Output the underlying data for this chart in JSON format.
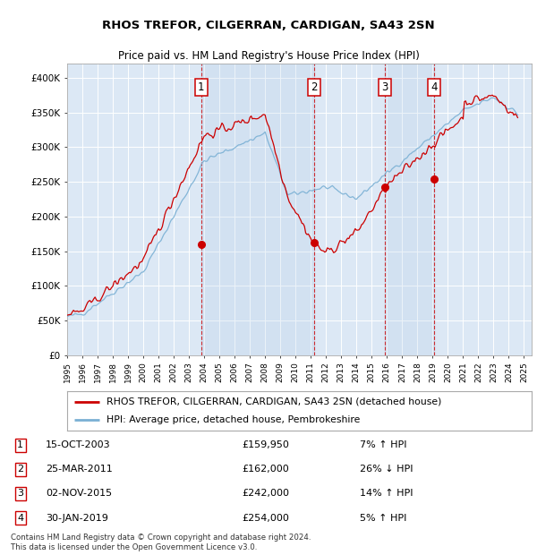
{
  "title": "RHOS TREFOR, CILGERRAN, CARDIGAN, SA43 2SN",
  "subtitle": "Price paid vs. HM Land Registry's House Price Index (HPI)",
  "background_color": "#ffffff",
  "chart_bg_color": "#dce8f5",
  "grid_color": "#ffffff",
  "ylim": [
    0,
    420000
  ],
  "yticks": [
    0,
    50000,
    100000,
    150000,
    200000,
    250000,
    300000,
    350000,
    400000
  ],
  "ytick_labels": [
    "£0",
    "£50K",
    "£100K",
    "£150K",
    "£200K",
    "£250K",
    "£300K",
    "£350K",
    "£400K"
  ],
  "legend_entries": [
    "RHOS TREFOR, CILGERRAN, CARDIGAN, SA43 2SN (detached house)",
    "HPI: Average price, detached house, Pembrokeshire"
  ],
  "legend_colors": [
    "#cc0000",
    "#7ab0d4"
  ],
  "transactions": [
    {
      "num": 1,
      "date": "15-OCT-2003",
      "price": "£159,950",
      "pct": "7%",
      "dir": "↑",
      "rel": "HPI"
    },
    {
      "num": 2,
      "date": "25-MAR-2011",
      "price": "£162,000",
      "pct": "26%",
      "dir": "↓",
      "rel": "HPI"
    },
    {
      "num": 3,
      "date": "02-NOV-2015",
      "price": "£242,000",
      "pct": "14%",
      "dir": "↑",
      "rel": "HPI"
    },
    {
      "num": 4,
      "date": "30-JAN-2019",
      "price": "£254,000",
      "pct": "5%",
      "dir": "↑",
      "rel": "HPI"
    }
  ],
  "transaction_dates_decimal": [
    2003.79,
    2011.23,
    2015.84,
    2019.08
  ],
  "transaction_prices": [
    159950,
    162000,
    242000,
    254000
  ],
  "footer": "Contains HM Land Registry data © Crown copyright and database right 2024.\nThis data is licensed under the Open Government Licence v3.0.",
  "xlim": [
    1995.0,
    2025.5
  ],
  "xtick_start": 1995,
  "xtick_end": 2026
}
